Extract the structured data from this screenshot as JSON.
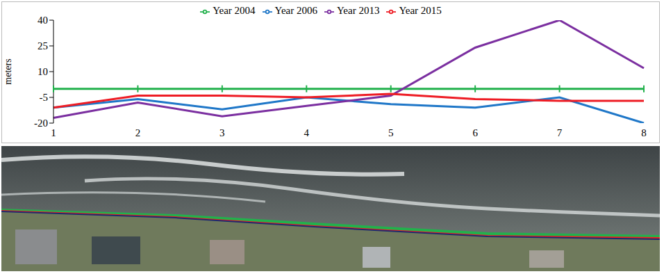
{
  "chart_data": {
    "type": "line",
    "y_label": "meters",
    "categories": [
      "1",
      "2",
      "3",
      "4",
      "5",
      "6",
      "7",
      "8"
    ],
    "ylim": [
      -20,
      40
    ],
    "yticks": [
      -20,
      -5,
      10,
      25,
      40
    ],
    "legend": "top",
    "grid": false,
    "series": [
      {
        "name": "Year 2004",
        "color": "#22b14c",
        "marker": "tick",
        "values": [
          0,
          0,
          0,
          0,
          0,
          0,
          0,
          0
        ]
      },
      {
        "name": "Year 2006",
        "color": "#1f77c8",
        "marker": "none",
        "values": [
          -11,
          -6,
          -12,
          -5,
          -9,
          -11,
          -5,
          -20
        ]
      },
      {
        "name": "Year 2013",
        "color": "#7b2fa0",
        "marker": "none",
        "values": [
          -17,
          -8,
          -16,
          -10,
          -4,
          24,
          40,
          12
        ]
      },
      {
        "name": "Year 2015",
        "color": "#ee1c24",
        "marker": "none",
        "values": [
          -11,
          -4,
          -4,
          -5,
          -3,
          -6,
          -7,
          -7
        ]
      }
    ]
  }
}
